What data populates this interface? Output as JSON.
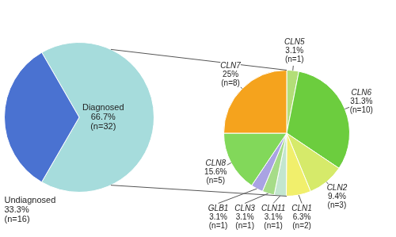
{
  "chart_data": [
    {
      "type": "pie",
      "categories": [
        "Diagnosed",
        "Undiagnosed"
      ],
      "values": [
        66.7,
        33.3
      ],
      "value_labels": [
        "66.7%",
        "33.3%"
      ],
      "count_labels": [
        "(n=32)",
        "(n=16)"
      ],
      "colors": [
        "#a6dcdc",
        "#4a72d1"
      ],
      "data_labels": true
    },
    {
      "type": "pie",
      "categories": [
        "CLN5",
        "CLN6",
        "CLN2",
        "CLN1",
        "CLN11",
        "CLN3",
        "GLB1",
        "CLN8",
        "CLN7"
      ],
      "values": [
        3.1,
        31.3,
        9.4,
        6.3,
        3.1,
        3.1,
        3.1,
        15.6,
        25
      ],
      "value_labels": [
        "3.1%",
        "31.3%",
        "9.4%",
        "6.3%",
        "3.1%",
        "3.1%",
        "3.1%",
        "15.6%",
        "25%"
      ],
      "count_labels": [
        "(n=1)",
        "(n=10)",
        "(n=3)",
        "(n=2)",
        "(n=1)",
        "(n=1)",
        "(n=1)",
        "(n=5)",
        "(n=8)"
      ],
      "colors": [
        "#b3de78",
        "#6ccd3e",
        "#d6ea6a",
        "#f1ef6c",
        "#c3e6cf",
        "#a6dc88",
        "#a9a3e3",
        "#82d85a",
        "#f5a31d"
      ],
      "data_labels": true
    }
  ]
}
